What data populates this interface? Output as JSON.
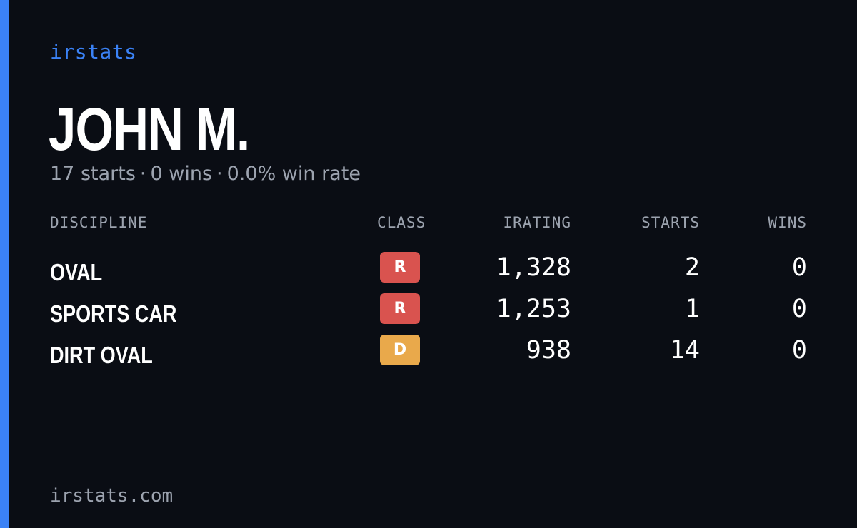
{
  "brand": "irstats",
  "driver": {
    "name": "JOHN M."
  },
  "summary": {
    "starts": "17 starts",
    "wins": "0 wins",
    "win_rate": "0.0% win rate",
    "separator": "·"
  },
  "table": {
    "headers": {
      "discipline": "DISCIPLINE",
      "class": "CLASS",
      "irating": "IRATING",
      "starts": "STARTS",
      "wins": "WINS"
    },
    "rows": [
      {
        "discipline": "OVAL",
        "class": "R",
        "class_color": "#d9534f",
        "irating": "1,328",
        "starts": "2",
        "wins": "0"
      },
      {
        "discipline": "SPORTS CAR",
        "class": "R",
        "class_color": "#d9534f",
        "irating": "1,253",
        "starts": "1",
        "wins": "0"
      },
      {
        "discipline": "DIRT OVAL",
        "class": "D",
        "class_color": "#e9a94b",
        "irating": "938",
        "starts": "14",
        "wins": "0"
      }
    ]
  },
  "footer": "irstats.com",
  "colors": {
    "accent": "#3b82f6",
    "background": "#0a0d14"
  }
}
